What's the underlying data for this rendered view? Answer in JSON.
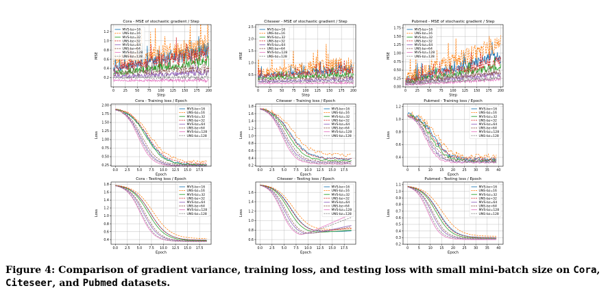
{
  "figure": {
    "caption_prefix": "Figure 4: Comparison of gradient variance, training loss, and testing loss with small mini-batch size on ",
    "caption_ds1": "Cora",
    "caption_sep1": ", ",
    "caption_ds2": "Citeseer",
    "caption_sep2": ", and ",
    "caption_ds3": "Pubmed",
    "caption_suffix": " datasets."
  },
  "series_styles": [
    {
      "name": "MVS-bz=16",
      "color": "#1f77b4",
      "dash": "solid"
    },
    {
      "name": "UNS-bz=16",
      "color": "#ff7f0e",
      "dash": "dashed"
    },
    {
      "name": "MVS-bz=32",
      "color": "#2ca02c",
      "dash": "solid"
    },
    {
      "name": "UNS-bz=32",
      "color": "#d62728",
      "dash": "dashed"
    },
    {
      "name": "MVS-bz=64",
      "color": "#9467bd",
      "dash": "solid"
    },
    {
      "name": "UNS-bz=64",
      "color": "#8c564b",
      "dash": "dashed"
    },
    {
      "name": "MVS-bz=128",
      "color": "#e377c2",
      "dash": "solid"
    },
    {
      "name": "UNS-bz=128",
      "color": "#7f7f7f",
      "dash": "dashed"
    }
  ],
  "chart_data": [
    {
      "type": "line",
      "title": "Cora - MSE of stochastic gradient / Step",
      "xlabel": "Step",
      "ylabel": "MSE",
      "xlim": [
        -5,
        205
      ],
      "ylim": [
        0.0,
        1.35
      ],
      "xticks": [
        0,
        25,
        50,
        75,
        100,
        125,
        150,
        175,
        200
      ],
      "yticks": [
        0.2,
        0.4,
        0.6,
        0.8,
        1.0,
        1.2
      ],
      "ytick_dec": 1,
      "grid": true,
      "legend": "upper-left",
      "shape": "mse",
      "x_max": 200,
      "series": [
        {
          "name": "MVS-bz=16",
          "start": 0.4,
          "end": 0.8,
          "noise": 0.16
        },
        {
          "name": "UNS-bz=16",
          "start": 0.55,
          "end": 0.88,
          "noise": 0.22
        },
        {
          "name": "MVS-bz=32",
          "start": 0.3,
          "end": 0.55,
          "noise": 0.1
        },
        {
          "name": "UNS-bz=32",
          "start": 0.4,
          "end": 0.72,
          "noise": 0.15
        },
        {
          "name": "MVS-bz=64",
          "start": 0.22,
          "end": 0.32,
          "noise": 0.06
        },
        {
          "name": "UNS-bz=64",
          "start": 0.28,
          "end": 0.4,
          "noise": 0.08
        },
        {
          "name": "MVS-bz=128",
          "start": 0.14,
          "end": 0.14,
          "noise": 0.03
        },
        {
          "name": "UNS-bz=128",
          "start": 0.2,
          "end": 0.2,
          "noise": 0.04
        }
      ]
    },
    {
      "type": "line",
      "title": "Citeseer - MSE of stochastic gradient / Step",
      "xlabel": "Step",
      "ylabel": "MSE",
      "xlim": [
        -5,
        205
      ],
      "ylim": [
        0.0,
        2.6
      ],
      "xticks": [
        0,
        25,
        50,
        75,
        100,
        125,
        150,
        175,
        200
      ],
      "yticks": [
        0.5,
        1.0,
        1.5,
        2.0,
        2.5
      ],
      "ytick_dec": 1,
      "grid": true,
      "legend": "upper-left",
      "shape": "mse",
      "x_max": 200,
      "series": [
        {
          "name": "MVS-bz=16",
          "start": 0.45,
          "end": 0.78,
          "noise": 0.16
        },
        {
          "name": "UNS-bz=16",
          "start": 0.6,
          "end": 0.95,
          "noise": 0.3
        },
        {
          "name": "MVS-bz=32",
          "start": 0.35,
          "end": 0.52,
          "noise": 0.1
        },
        {
          "name": "UNS-bz=32",
          "start": 0.45,
          "end": 0.68,
          "noise": 0.14
        },
        {
          "name": "MVS-bz=64",
          "start": 0.22,
          "end": 0.3,
          "noise": 0.06
        },
        {
          "name": "UNS-bz=64",
          "start": 0.3,
          "end": 0.4,
          "noise": 0.07
        },
        {
          "name": "MVS-bz=128",
          "start": 0.14,
          "end": 0.16,
          "noise": 0.03
        },
        {
          "name": "UNS-bz=128",
          "start": 0.2,
          "end": 0.22,
          "noise": 0.04
        }
      ]
    },
    {
      "type": "line",
      "title": "Pubmed - MSE of stochastic gradient / Step",
      "xlabel": "Step",
      "ylabel": "MSE",
      "xlim": [
        -5,
        205
      ],
      "ylim": [
        0.0,
        1.85
      ],
      "xticks": [
        0,
        25,
        50,
        75,
        100,
        125,
        150,
        175,
        200
      ],
      "yticks": [
        0.0,
        0.25,
        0.5,
        0.75,
        1.0,
        1.25,
        1.5,
        1.75
      ],
      "ytick_dec": 2,
      "grid": true,
      "legend": "upper-left",
      "shape": "mse",
      "x_max": 200,
      "series": [
        {
          "name": "MVS-bz=16",
          "start": 0.2,
          "end": 0.9,
          "noise": 0.16
        },
        {
          "name": "UNS-bz=16",
          "start": 0.28,
          "end": 1.25,
          "noise": 0.26
        },
        {
          "name": "MVS-bz=32",
          "start": 0.15,
          "end": 0.6,
          "noise": 0.1
        },
        {
          "name": "UNS-bz=32",
          "start": 0.2,
          "end": 0.75,
          "noise": 0.14
        },
        {
          "name": "MVS-bz=64",
          "start": 0.1,
          "end": 0.38,
          "noise": 0.07
        },
        {
          "name": "UNS-bz=64",
          "start": 0.12,
          "end": 0.45,
          "noise": 0.08
        },
        {
          "name": "MVS-bz=128",
          "start": 0.06,
          "end": 0.22,
          "noise": 0.04
        },
        {
          "name": "UNS-bz=128",
          "start": 0.08,
          "end": 0.26,
          "noise": 0.05
        }
      ]
    },
    {
      "type": "line",
      "title": "Cora - Training loss / Epoch",
      "xlabel": "Epoch",
      "ylabel": "Loss",
      "xlim": [
        -0.9,
        19.9
      ],
      "ylim": [
        0.22,
        2.04
      ],
      "xticks": [
        0.0,
        2.5,
        5.0,
        7.5,
        10.0,
        12.5,
        15.0,
        17.5
      ],
      "yticks": [
        0.25,
        0.5,
        0.75,
        1.0,
        1.25,
        1.5,
        1.75,
        2.0
      ],
      "ytick_dec": 2,
      "grid": true,
      "legend": "upper-right",
      "shape": "loss",
      "x_max": 19,
      "series": [
        {
          "name": "MVS-bz=16",
          "start": 1.93,
          "end": 0.26,
          "mid": 6.6,
          "steep": 0.52,
          "noise": 0.03
        },
        {
          "name": "UNS-bz=16",
          "start": 1.93,
          "end": 0.34,
          "mid": 7.1,
          "steep": 0.5,
          "noise": 0.04
        },
        {
          "name": "MVS-bz=32",
          "start": 1.93,
          "end": 0.26,
          "mid": 6.4,
          "steep": 0.55,
          "noise": 0.02
        },
        {
          "name": "UNS-bz=32",
          "start": 1.93,
          "end": 0.3,
          "mid": 6.7,
          "steep": 0.53,
          "noise": 0.02
        },
        {
          "name": "MVS-bz=64",
          "start": 1.93,
          "end": 0.24,
          "mid": 5.2,
          "steep": 0.65,
          "noise": 0.015
        },
        {
          "name": "UNS-bz=64",
          "start": 1.93,
          "end": 0.26,
          "mid": 5.5,
          "steep": 0.62,
          "noise": 0.015
        },
        {
          "name": "MVS-bz=128",
          "start": 1.93,
          "end": 0.22,
          "mid": 4.8,
          "steep": 0.7,
          "noise": 0.01
        },
        {
          "name": "UNS-bz=128",
          "start": 1.93,
          "end": 0.24,
          "mid": 5.0,
          "steep": 0.68,
          "noise": 0.01
        }
      ]
    },
    {
      "type": "line",
      "title": "Citeseer - Training loss / Epoch",
      "xlabel": "Epoch",
      "ylabel": "Loss",
      "xlim": [
        -0.9,
        19.9
      ],
      "ylim": [
        0.18,
        1.86
      ],
      "xticks": [
        0.0,
        2.5,
        5.0,
        7.5,
        10.0,
        12.5,
        15.0,
        17.5
      ],
      "yticks": [
        0.2,
        0.4,
        0.6,
        0.8,
        1.0,
        1.2,
        1.4,
        1.6,
        1.8
      ],
      "ytick_dec": 1,
      "grid": true,
      "legend": "upper-right",
      "shape": "loss",
      "x_max": 19,
      "series": [
        {
          "name": "MVS-bz=16",
          "start": 1.78,
          "end": 0.38,
          "mid": 6.2,
          "steep": 0.55,
          "noise": 0.03
        },
        {
          "name": "UNS-bz=16",
          "start": 1.78,
          "end": 0.48,
          "mid": 6.8,
          "steep": 0.52,
          "noise": 0.04
        },
        {
          "name": "MVS-bz=32",
          "start": 1.78,
          "end": 0.33,
          "mid": 5.8,
          "steep": 0.58,
          "noise": 0.02
        },
        {
          "name": "UNS-bz=32",
          "start": 1.78,
          "end": 0.38,
          "mid": 6.1,
          "steep": 0.56,
          "noise": 0.02
        },
        {
          "name": "MVS-bz=64",
          "start": 1.78,
          "end": 0.28,
          "mid": 5.0,
          "steep": 0.66,
          "noise": 0.015
        },
        {
          "name": "UNS-bz=64",
          "start": 1.78,
          "end": 0.3,
          "mid": 5.3,
          "steep": 0.63,
          "noise": 0.015
        },
        {
          "name": "MVS-bz=128",
          "start": 1.78,
          "end": 0.24,
          "mid": 4.6,
          "steep": 0.72,
          "noise": 0.01
        },
        {
          "name": "UNS-bz=128",
          "start": 1.78,
          "end": 0.26,
          "mid": 4.8,
          "steep": 0.7,
          "noise": 0.01
        }
      ]
    },
    {
      "type": "line",
      "title": "Pubmed - Training loss / Epoch",
      "xlabel": "Epoch",
      "ylabel": "Loss",
      "xlim": [
        -2,
        42
      ],
      "ylim": [
        0.26,
        1.24
      ],
      "xticks": [
        0,
        5,
        10,
        15,
        20,
        25,
        30,
        35,
        40
      ],
      "yticks": [
        0.4,
        0.6,
        0.8,
        1.0,
        1.2
      ],
      "ytick_dec": 1,
      "grid": true,
      "legend": "upper-right",
      "shape": "loss",
      "x_max": 39,
      "series": [
        {
          "name": "MVS-bz=16",
          "start": 1.1,
          "end": 0.36,
          "mid": 11.5,
          "steep": 0.3,
          "noise": 0.04
        },
        {
          "name": "UNS-bz=16",
          "start": 1.1,
          "end": 0.4,
          "mid": 12.5,
          "steep": 0.28,
          "noise": 0.05
        },
        {
          "name": "MVS-bz=32",
          "start": 1.09,
          "end": 0.34,
          "mid": 10.5,
          "steep": 0.32,
          "noise": 0.03
        },
        {
          "name": "UNS-bz=32",
          "start": 1.09,
          "end": 0.37,
          "mid": 11.0,
          "steep": 0.3,
          "noise": 0.03
        },
        {
          "name": "MVS-bz=64",
          "start": 1.08,
          "end": 0.33,
          "mid": 9.0,
          "steep": 0.36,
          "noise": 0.02
        },
        {
          "name": "UNS-bz=64",
          "start": 1.08,
          "end": 0.35,
          "mid": 9.5,
          "steep": 0.34,
          "noise": 0.02
        },
        {
          "name": "MVS-bz=128",
          "start": 1.08,
          "end": 0.32,
          "mid": 8.0,
          "steep": 0.4,
          "noise": 0.015
        },
        {
          "name": "UNS-bz=128",
          "start": 1.08,
          "end": 0.33,
          "mid": 8.4,
          "steep": 0.38,
          "noise": 0.015
        }
      ]
    },
    {
      "type": "line",
      "title": "Cora - Testing loss / Epoch",
      "xlabel": "Epoch",
      "ylabel": "Loss",
      "xlim": [
        -0.9,
        19.9
      ],
      "ylim": [
        0.28,
        1.86
      ],
      "xticks": [
        0.0,
        2.5,
        5.0,
        7.5,
        10.0,
        12.5,
        15.0,
        17.5
      ],
      "yticks": [
        0.4,
        0.6,
        0.8,
        1.0,
        1.2,
        1.4,
        1.6,
        1.8
      ],
      "ytick_dec": 1,
      "grid": true,
      "legend": "upper-right",
      "shape": "loss",
      "x_max": 19,
      "series": [
        {
          "name": "MVS-bz=16",
          "start": 1.8,
          "end": 0.38,
          "mid": 7.2,
          "steep": 0.55,
          "noise": 0.0
        },
        {
          "name": "UNS-bz=16",
          "start": 1.8,
          "end": 0.42,
          "mid": 7.8,
          "steep": 0.52,
          "noise": 0.0
        },
        {
          "name": "MVS-bz=32",
          "start": 1.8,
          "end": 0.37,
          "mid": 6.8,
          "steep": 0.57,
          "noise": 0.0
        },
        {
          "name": "UNS-bz=32",
          "start": 1.8,
          "end": 0.38,
          "mid": 7.2,
          "steep": 0.55,
          "noise": 0.0
        },
        {
          "name": "MVS-bz=64",
          "start": 1.8,
          "end": 0.36,
          "mid": 5.8,
          "steep": 0.64,
          "noise": 0.0
        },
        {
          "name": "UNS-bz=64",
          "start": 1.8,
          "end": 0.36,
          "mid": 6.1,
          "steep": 0.62,
          "noise": 0.0
        },
        {
          "name": "MVS-bz=128",
          "start": 1.8,
          "end": 0.35,
          "mid": 5.2,
          "steep": 0.7,
          "noise": 0.0
        },
        {
          "name": "UNS-bz=128",
          "start": 1.8,
          "end": 0.35,
          "mid": 5.4,
          "steep": 0.68,
          "noise": 0.0
        }
      ]
    },
    {
      "type": "line",
      "title": "Citeseer - Testing loss / Epoch",
      "xlabel": "Epoch",
      "ylabel": "Loss",
      "xlim": [
        -0.9,
        19.9
      ],
      "ylim": [
        0.5,
        1.82
      ],
      "xticks": [
        0.0,
        2.5,
        5.0,
        7.5,
        10.0,
        12.5,
        15.0,
        17.5
      ],
      "yticks": [
        0.6,
        0.8,
        1.0,
        1.2,
        1.4,
        1.6
      ],
      "ytick_dec": 1,
      "grid": true,
      "legend": "upper-right",
      "shape": "loss",
      "x_max": 19,
      "series": [
        {
          "name": "MVS-bz=16",
          "start": 1.78,
          "end": 0.74,
          "mid": 6.4,
          "steep": 0.6,
          "noise": 0.0,
          "rise": 0.04
        },
        {
          "name": "UNS-bz=16",
          "start": 1.78,
          "end": 0.78,
          "mid": 6.9,
          "steep": 0.56,
          "noise": 0.0,
          "rise": 0.05
        },
        {
          "name": "MVS-bz=32",
          "start": 1.78,
          "end": 0.72,
          "mid": 5.9,
          "steep": 0.64,
          "noise": 0.0,
          "rise": 0.08
        },
        {
          "name": "UNS-bz=32",
          "start": 1.78,
          "end": 0.74,
          "mid": 6.3,
          "steep": 0.6,
          "noise": 0.0,
          "rise": 0.1
        },
        {
          "name": "MVS-bz=64",
          "start": 1.78,
          "end": 0.68,
          "mid": 5.0,
          "steep": 0.72,
          "noise": 0.0,
          "rise": 0.22
        },
        {
          "name": "UNS-bz=64",
          "start": 1.78,
          "end": 0.69,
          "mid": 5.3,
          "steep": 0.7,
          "noise": 0.0,
          "rise": 0.18
        },
        {
          "name": "MVS-bz=128",
          "start": 1.78,
          "end": 0.66,
          "mid": 4.4,
          "steep": 0.8,
          "noise": 0.0,
          "rise": 0.48
        },
        {
          "name": "UNS-bz=128",
          "start": 1.78,
          "end": 0.67,
          "mid": 4.6,
          "steep": 0.78,
          "noise": 0.0,
          "rise": 0.4
        }
      ]
    },
    {
      "type": "line",
      "title": "Pubmed - Testing loss / Epoch",
      "xlabel": "Epoch",
      "ylabel": "Loss",
      "xlim": [
        -2,
        42
      ],
      "ylim": [
        0.2,
        1.14
      ],
      "xticks": [
        0,
        5,
        10,
        15,
        20,
        25,
        30,
        35,
        40
      ],
      "yticks": [
        0.2,
        0.3,
        0.4,
        0.5,
        0.6,
        0.7,
        0.8,
        0.9,
        1.0,
        1.1
      ],
      "ytick_dec": 1,
      "grid": true,
      "legend": "upper-right",
      "shape": "loss",
      "x_max": 39,
      "series": [
        {
          "name": "MVS-bz=16",
          "start": 1.09,
          "end": 0.3,
          "mid": 13.5,
          "steep": 0.28,
          "noise": 0.0
        },
        {
          "name": "UNS-bz=16",
          "start": 1.09,
          "end": 0.32,
          "mid": 15.0,
          "steep": 0.26,
          "noise": 0.0
        },
        {
          "name": "MVS-bz=32",
          "start": 1.09,
          "end": 0.29,
          "mid": 12.5,
          "steep": 0.3,
          "noise": 0.0
        },
        {
          "name": "UNS-bz=32",
          "start": 1.09,
          "end": 0.3,
          "mid": 13.2,
          "steep": 0.29,
          "noise": 0.0
        },
        {
          "name": "MVS-bz=64",
          "start": 1.09,
          "end": 0.28,
          "mid": 10.5,
          "steep": 0.34,
          "noise": 0.0
        },
        {
          "name": "UNS-bz=64",
          "start": 1.09,
          "end": 0.29,
          "mid": 11.0,
          "steep": 0.33,
          "noise": 0.0
        },
        {
          "name": "MVS-bz=128",
          "start": 1.09,
          "end": 0.27,
          "mid": 9.0,
          "steep": 0.38,
          "noise": 0.0
        },
        {
          "name": "UNS-bz=128",
          "start": 1.09,
          "end": 0.28,
          "mid": 9.5,
          "steep": 0.37,
          "noise": 0.0
        }
      ]
    }
  ]
}
